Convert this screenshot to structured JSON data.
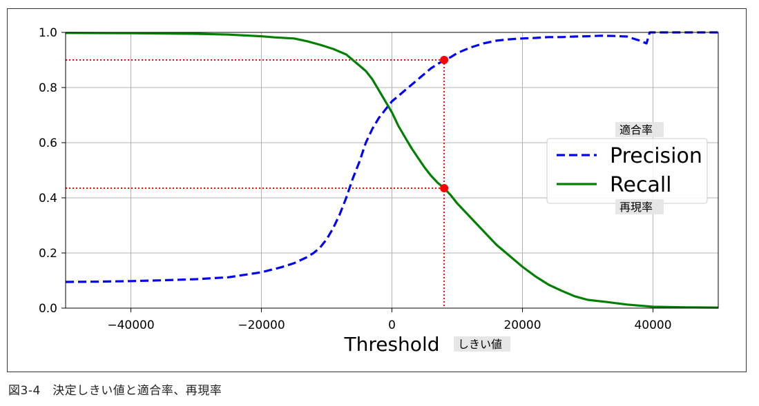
{
  "chart_data": {
    "type": "line",
    "xlabel": "Threshold",
    "xlabel_note": "しきい値",
    "xlim": [
      -50000,
      50000
    ],
    "ylim": [
      0.0,
      1.0
    ],
    "xticks": [
      -40000,
      -20000,
      0,
      20000,
      40000
    ],
    "xtick_labels": [
      "−40000",
      "−20000",
      "0",
      "20000",
      "40000"
    ],
    "yticks": [
      0.0,
      0.2,
      0.4,
      0.6,
      0.8,
      1.0
    ],
    "ytick_labels": [
      "0.0",
      "0.2",
      "0.4",
      "0.6",
      "0.8",
      "1.0"
    ],
    "grid": true,
    "legend_position": "center-right",
    "series": [
      {
        "name": "Precision",
        "name_note": "適合率",
        "color": "#0000ff",
        "style": "dashed",
        "x": [
          -50000,
          -45000,
          -40000,
          -35000,
          -30000,
          -25000,
          -20000,
          -17000,
          -15000,
          -13000,
          -12000,
          -11000,
          -10000,
          -9000,
          -8000,
          -7000,
          -6000,
          -5000,
          -4000,
          -3000,
          -2000,
          -1000,
          0,
          1000,
          2000,
          3000,
          4000,
          5000,
          6000,
          7000,
          8000,
          9000,
          10000,
          12000,
          14000,
          16000,
          18000,
          20000,
          22000,
          24000,
          26000,
          28000,
          30000,
          32000,
          34000,
          36000,
          38000,
          39000,
          39500,
          40000,
          42000,
          45000,
          50000
        ],
        "y": [
          0.095,
          0.096,
          0.098,
          0.101,
          0.105,
          0.112,
          0.13,
          0.148,
          0.163,
          0.185,
          0.2,
          0.22,
          0.25,
          0.29,
          0.34,
          0.4,
          0.47,
          0.53,
          0.6,
          0.65,
          0.69,
          0.72,
          0.75,
          0.77,
          0.79,
          0.81,
          0.83,
          0.85,
          0.87,
          0.885,
          0.9,
          0.91,
          0.925,
          0.945,
          0.96,
          0.97,
          0.975,
          0.978,
          0.98,
          0.983,
          0.983,
          0.985,
          0.986,
          0.988,
          0.987,
          0.985,
          0.97,
          0.96,
          1.0,
          1.0,
          1.0,
          1.0,
          1.0
        ]
      },
      {
        "name": "Recall",
        "name_note": "再現率",
        "color": "#008000",
        "style": "solid",
        "x": [
          -50000,
          -40000,
          -30000,
          -25000,
          -20000,
          -18000,
          -15000,
          -13000,
          -11000,
          -9000,
          -7000,
          -6000,
          -5000,
          -4000,
          -3000,
          -2000,
          -1000,
          0,
          1000,
          2000,
          3000,
          4000,
          5000,
          6000,
          7000,
          8000,
          9000,
          10000,
          12000,
          14000,
          16000,
          18000,
          20000,
          22000,
          24000,
          26000,
          28000,
          30000,
          33000,
          36000,
          40000,
          45000,
          50000
        ],
        "y": [
          0.998,
          0.997,
          0.995,
          0.992,
          0.986,
          0.982,
          0.978,
          0.968,
          0.955,
          0.94,
          0.92,
          0.9,
          0.88,
          0.86,
          0.83,
          0.79,
          0.75,
          0.71,
          0.66,
          0.62,
          0.58,
          0.545,
          0.51,
          0.48,
          0.455,
          0.435,
          0.41,
          0.38,
          0.33,
          0.28,
          0.23,
          0.19,
          0.15,
          0.115,
          0.085,
          0.063,
          0.043,
          0.03,
          0.022,
          0.013,
          0.005,
          0.003,
          0.002
        ]
      }
    ],
    "annotations": {
      "threshold_x": 8000,
      "precision_at_threshold": 0.9,
      "recall_at_threshold": 0.435,
      "line_color": "#ff0000",
      "point_color": "#ff0000"
    }
  },
  "caption": "図3-4　決定しきい値と適合率、再現率"
}
